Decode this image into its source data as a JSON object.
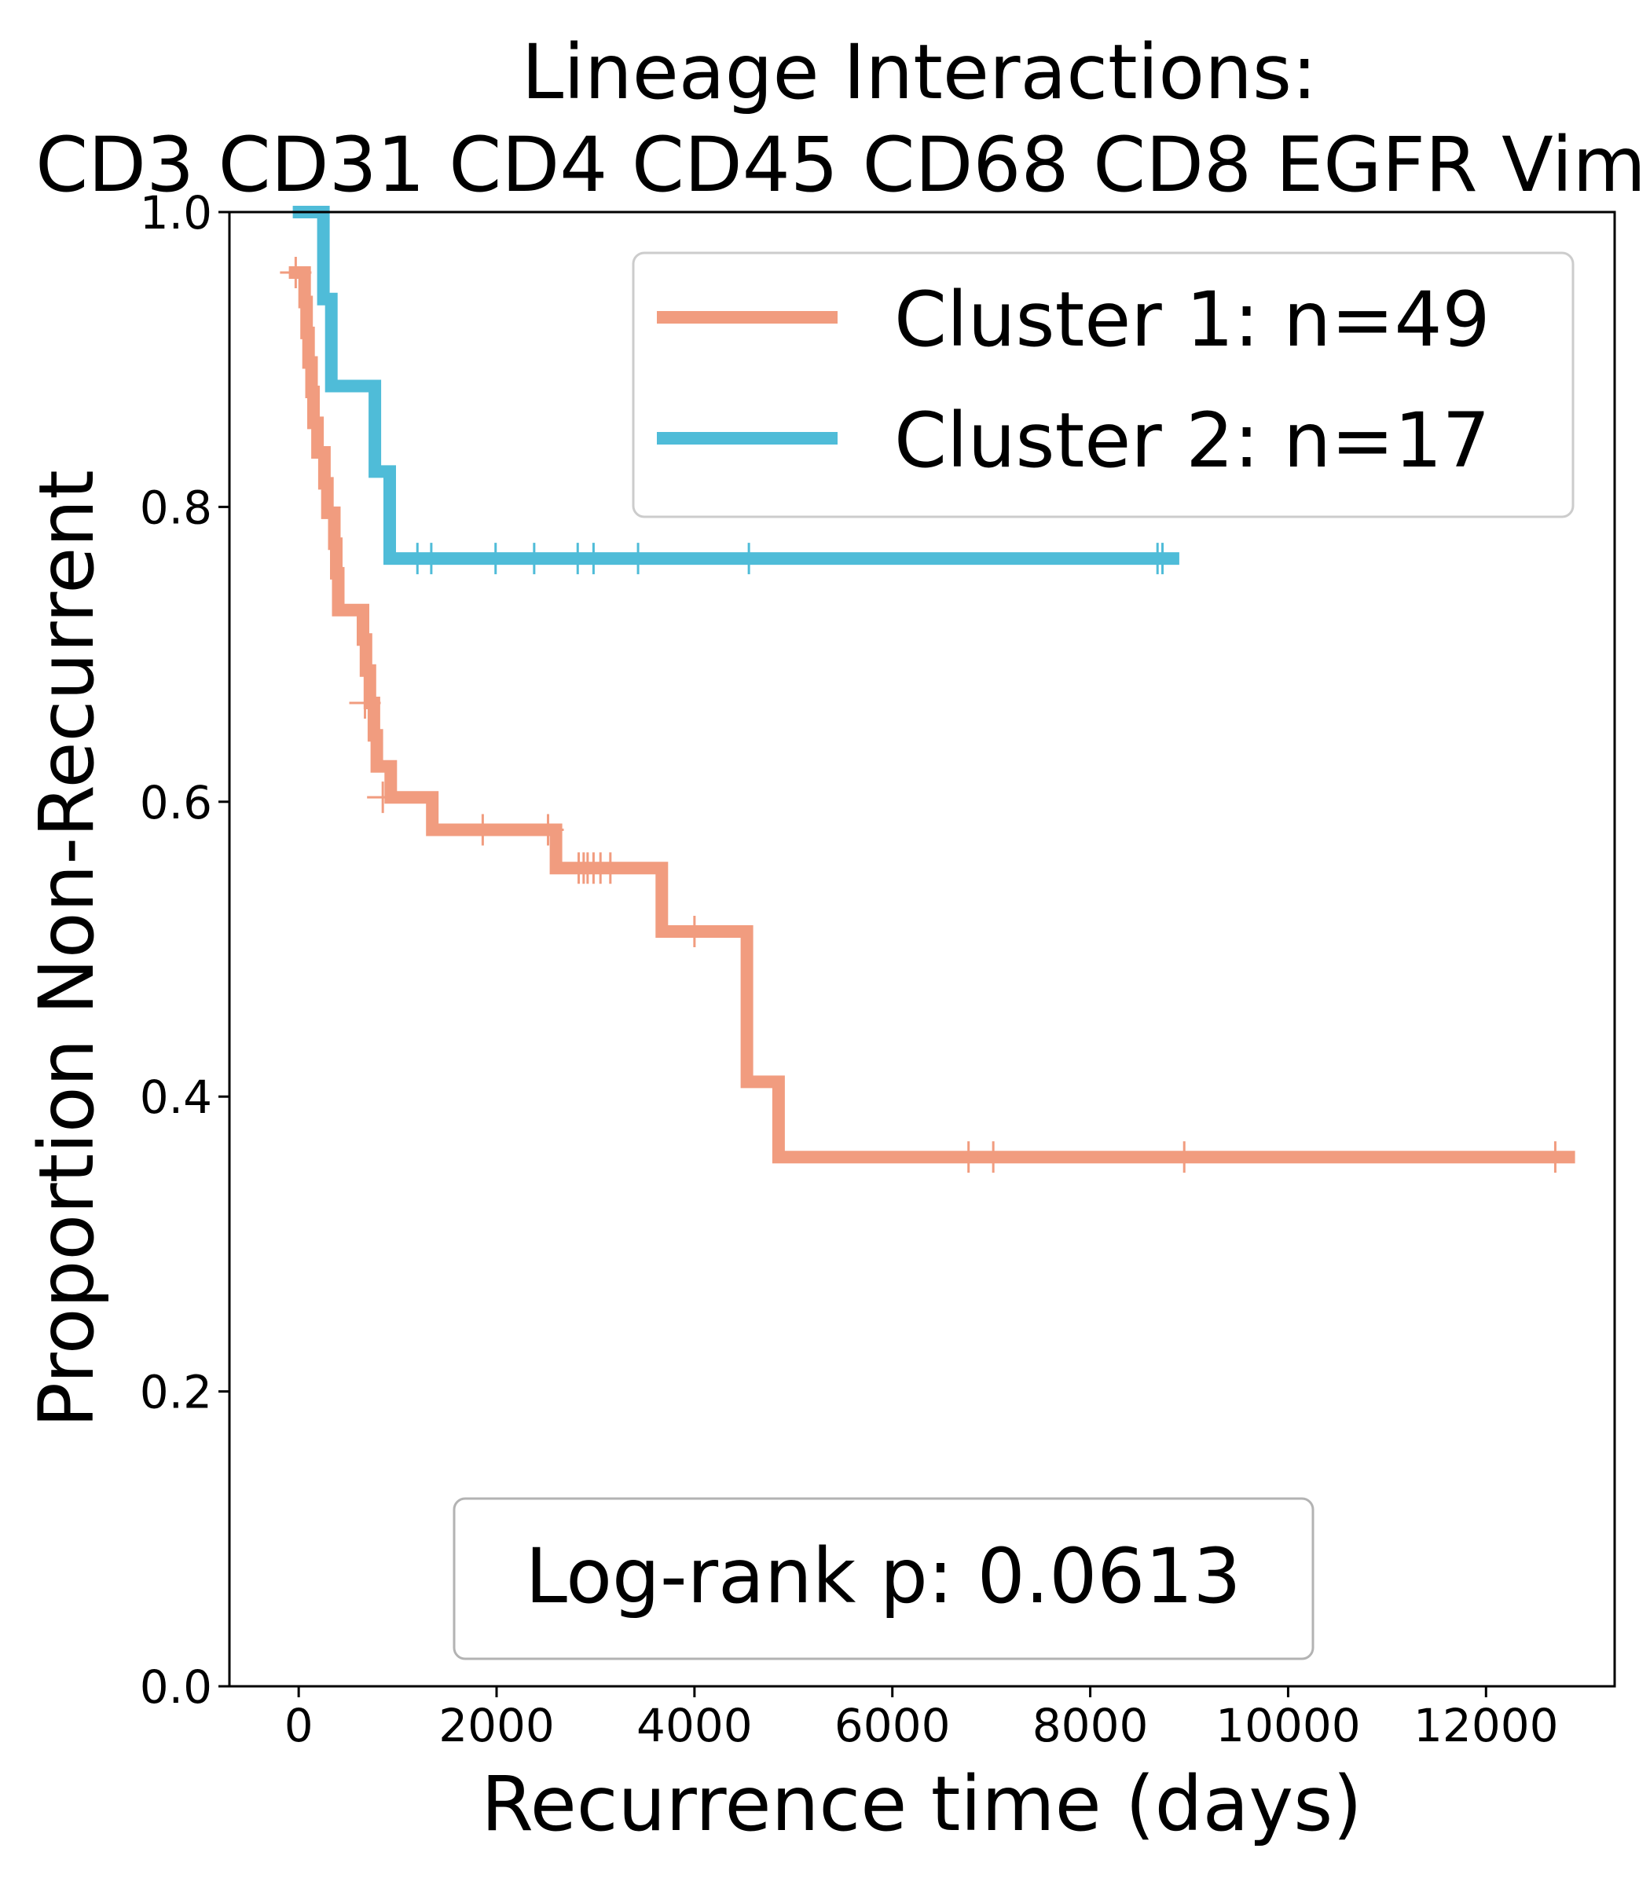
{
  "chart_data": {
    "type": "line",
    "title_lines": [
      "Lineage Interactions:",
      "CD3 CD31 CD4 CD45 CD68 CD8 EGFR Vim"
    ],
    "xlabel": "Recurrence time (days)",
    "ylabel": "Proportion Non-Recurrent",
    "xlim": [
      -700,
      13300
    ],
    "ylim": [
      0,
      1.0
    ],
    "x_ticks": [
      0,
      2000,
      4000,
      6000,
      8000,
      10000,
      12000
    ],
    "x_tick_labels": [
      "0",
      "2000",
      "4000",
      "6000",
      "8000",
      "10000",
      "12000"
    ],
    "y_ticks": [
      0.0,
      0.2,
      0.4,
      0.6,
      0.8,
      1.0
    ],
    "y_tick_labels": [
      "0.0",
      "0.2",
      "0.4",
      "0.6",
      "0.8",
      "1.0"
    ],
    "legend_position": "top-right",
    "series": [
      {
        "name": "Cluster 1: n=49",
        "color": "#f19c7f",
        "steps": [
          [
            -100,
            0.959
          ],
          [
            60,
            0.959
          ],
          [
            60,
            0.939
          ],
          [
            80,
            0.939
          ],
          [
            80,
            0.918
          ],
          [
            100,
            0.918
          ],
          [
            100,
            0.898
          ],
          [
            130,
            0.898
          ],
          [
            130,
            0.878
          ],
          [
            150,
            0.878
          ],
          [
            150,
            0.857
          ],
          [
            190,
            0.857
          ],
          [
            190,
            0.837
          ],
          [
            260,
            0.837
          ],
          [
            260,
            0.816
          ],
          [
            290,
            0.816
          ],
          [
            290,
            0.796
          ],
          [
            360,
            0.796
          ],
          [
            360,
            0.775
          ],
          [
            380,
            0.775
          ],
          [
            380,
            0.755
          ],
          [
            400,
            0.755
          ],
          [
            400,
            0.73
          ],
          [
            650,
            0.73
          ],
          [
            650,
            0.71
          ],
          [
            680,
            0.71
          ],
          [
            680,
            0.689
          ],
          [
            720,
            0.689
          ],
          [
            720,
            0.667
          ],
          [
            760,
            0.667
          ],
          [
            760,
            0.645
          ],
          [
            790,
            0.645
          ],
          [
            790,
            0.624
          ],
          [
            930,
            0.624
          ],
          [
            930,
            0.603
          ],
          [
            1350,
            0.603
          ],
          [
            1350,
            0.581
          ],
          [
            2600,
            0.581
          ],
          [
            2600,
            0.555
          ],
          [
            3670,
            0.555
          ],
          [
            3670,
            0.512
          ],
          [
            4530,
            0.512
          ],
          [
            4530,
            0.41
          ],
          [
            4850,
            0.41
          ],
          [
            4850,
            0.359
          ],
          [
            12900,
            0.359
          ]
        ],
        "censors": [
          [
            -30,
            0.959
          ],
          [
            670,
            0.667
          ],
          [
            850,
            0.603
          ],
          [
            1860,
            0.581
          ],
          [
            2520,
            0.581
          ],
          [
            2830,
            0.555
          ],
          [
            2880,
            0.555
          ],
          [
            2920,
            0.555
          ],
          [
            2980,
            0.555
          ],
          [
            3050,
            0.555
          ],
          [
            3150,
            0.555
          ],
          [
            4000,
            0.512
          ],
          [
            6770,
            0.359
          ],
          [
            7020,
            0.359
          ],
          [
            8950,
            0.359
          ],
          [
            12700,
            0.359
          ]
        ]
      },
      {
        "name": "Cluster 2: n=17",
        "color": "#4fbcd8",
        "steps": [
          [
            -60,
            1.0
          ],
          [
            250,
            1.0
          ],
          [
            250,
            0.941
          ],
          [
            330,
            0.941
          ],
          [
            330,
            0.882
          ],
          [
            770,
            0.882
          ],
          [
            770,
            0.824
          ],
          [
            920,
            0.824
          ],
          [
            920,
            0.765
          ],
          [
            8900,
            0.765
          ]
        ],
        "censors": [
          [
            1200,
            0.765
          ],
          [
            1340,
            0.765
          ],
          [
            1990,
            0.765
          ],
          [
            2380,
            0.765
          ],
          [
            2820,
            0.765
          ],
          [
            2980,
            0.765
          ],
          [
            3430,
            0.765
          ],
          [
            4550,
            0.765
          ],
          [
            8680,
            0.765
          ],
          [
            8730,
            0.765
          ]
        ]
      }
    ],
    "annotation": "Log-rank p: 0.0613"
  }
}
